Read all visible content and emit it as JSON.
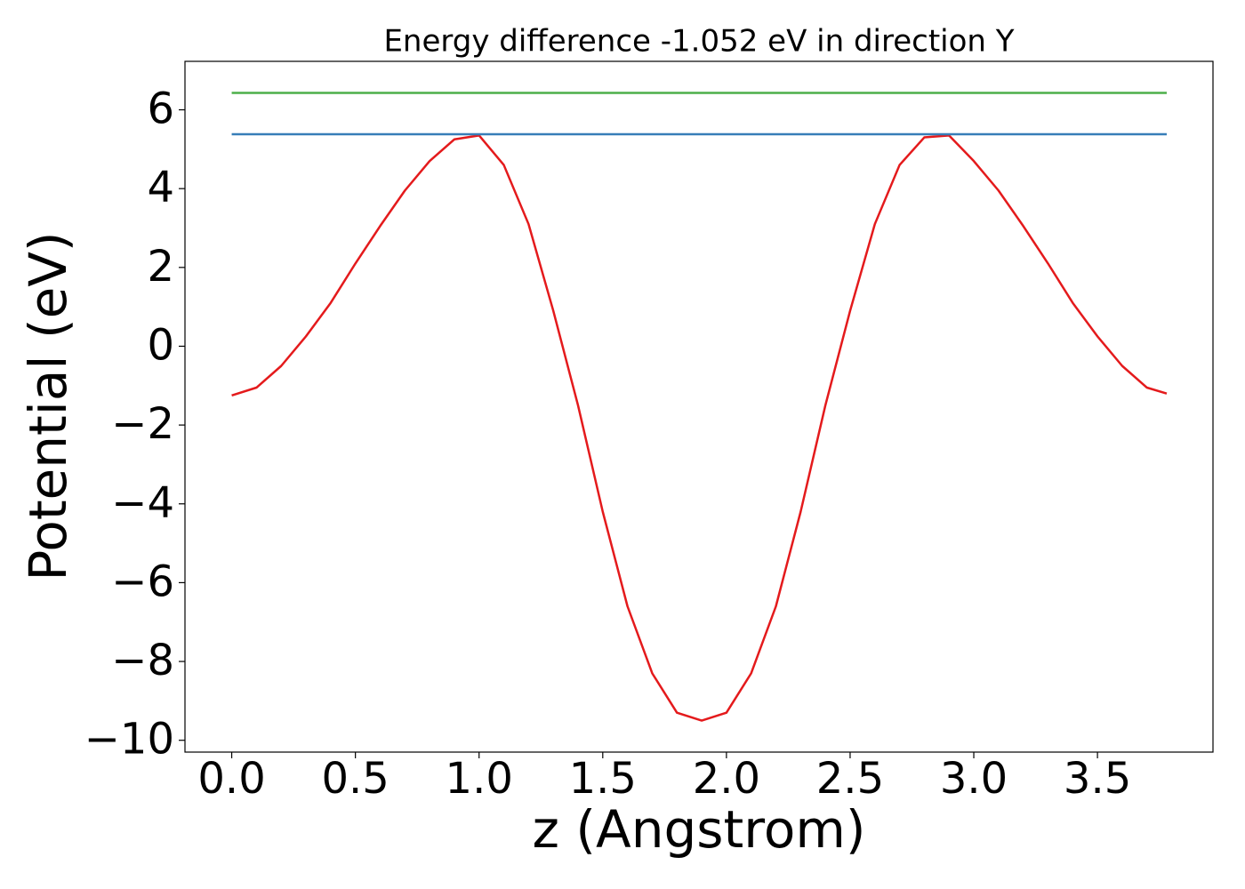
{
  "chart_data": {
    "type": "line",
    "title": "Energy difference -1.052 eV in direction Y",
    "xlabel": "z (Angstrom)",
    "ylabel": "Potential (eV)",
    "series": [
      {
        "color": "#e41a1c",
        "x": [
          0,
          0.1,
          0.2,
          0.3,
          0.4,
          0.5,
          0.6,
          0.7,
          0.8,
          0.9,
          1.0,
          1.1,
          1.2,
          1.3,
          1.4,
          1.5,
          1.6,
          1.7,
          1.8,
          1.9,
          2.0,
          2.1,
          2.2,
          2.3,
          2.4,
          2.5,
          2.6,
          2.7,
          2.8,
          2.9,
          3.0,
          3.1,
          3.2,
          3.3,
          3.4,
          3.5,
          3.6,
          3.7,
          3.78
        ],
        "values": [
          -1.25,
          -1.05,
          -0.5,
          0.25,
          1.1,
          2.1,
          3.05,
          3.95,
          4.7,
          5.25,
          5.35,
          4.6,
          3.1,
          0.9,
          -1.5,
          -4.2,
          -6.6,
          -8.3,
          -9.3,
          -9.5,
          -9.3,
          -8.3,
          -6.6,
          -4.2,
          -1.5,
          0.9,
          3.1,
          4.6,
          5.3,
          5.35,
          4.7,
          3.95,
          3.05,
          2.1,
          1.1,
          0.25,
          -0.5,
          -1.05,
          -1.2
        ]
      },
      {
        "color": "#377eb8",
        "x": [
          0,
          3.78
        ],
        "values": [
          5.38,
          5.38
        ]
      },
      {
        "color": "#4daf4a",
        "x": [
          0,
          3.78
        ],
        "values": [
          6.43,
          6.43
        ]
      }
    ],
    "xlim": [
      -0.189,
      3.967
    ],
    "xticks": [
      {
        "value": 0,
        "label": "0.0"
      },
      0.5,
      {
        "value": 1,
        "label": "1.0"
      },
      1.5,
      {
        "value": 2,
        "label": "2.0"
      },
      2.5,
      {
        "value": 3,
        "label": "3.0"
      },
      3.5
    ],
    "ylim": [
      -10.3,
      7.23
    ],
    "yticks": [
      {
        "value": -10,
        "label": "−10"
      },
      {
        "value": -8,
        "label": "−8"
      },
      {
        "value": -6,
        "label": "−6"
      },
      {
        "value": -4,
        "label": "−4"
      },
      {
        "value": -2,
        "label": "−2"
      },
      0,
      2,
      4,
      6
    ],
    "grid": false
  }
}
